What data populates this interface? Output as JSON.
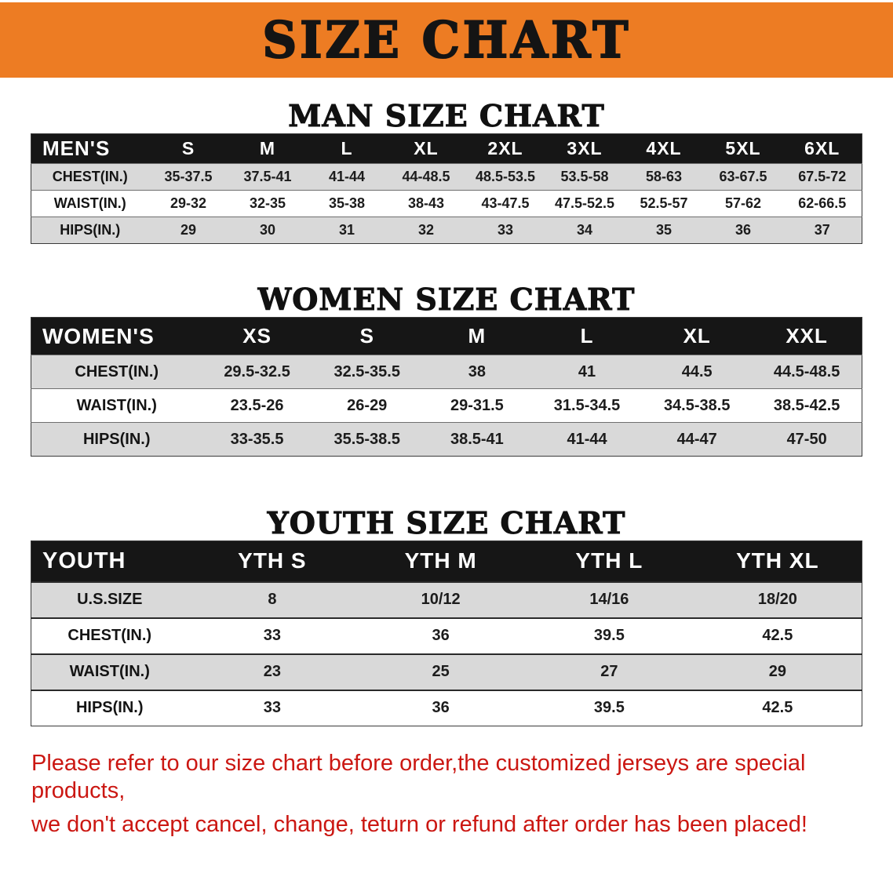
{
  "banner": {
    "title": "SIZE CHART"
  },
  "colors": {
    "banner_bg": "#ED7C23",
    "header_bg": "#161616",
    "row_stripe": "#D9D9D9",
    "note_red": "#CB1712"
  },
  "chart_data": [
    {
      "type": "table",
      "title": "MAN SIZE CHART",
      "columns": [
        "MEN'S",
        "S",
        "M",
        "L",
        "XL",
        "2XL",
        "3XL",
        "4XL",
        "5XL",
        "6XL"
      ],
      "rows": [
        [
          "CHEST(IN.)",
          "35-37.5",
          "37.5-41",
          "41-44",
          "44-48.5",
          "48.5-53.5",
          "53.5-58",
          "58-63",
          "63-67.5",
          "67.5-72"
        ],
        [
          "WAIST(IN.)",
          "29-32",
          "32-35",
          "35-38",
          "38-43",
          "43-47.5",
          "47.5-52.5",
          "52.5-57",
          "57-62",
          "62-66.5"
        ],
        [
          "HIPS(IN.)",
          "29",
          "30",
          "31",
          "32",
          "33",
          "34",
          "35",
          "36",
          "37"
        ]
      ]
    },
    {
      "type": "table",
      "title": "WOMEN SIZE CHART",
      "columns": [
        "WOMEN'S",
        "XS",
        "S",
        "M",
        "L",
        "XL",
        "XXL"
      ],
      "rows": [
        [
          "CHEST(IN.)",
          "29.5-32.5",
          "32.5-35.5",
          "38",
          "41",
          "44.5",
          "44.5-48.5"
        ],
        [
          "WAIST(IN.)",
          "23.5-26",
          "26-29",
          "29-31.5",
          "31.5-34.5",
          "34.5-38.5",
          "38.5-42.5"
        ],
        [
          "HIPS(IN.)",
          "33-35.5",
          "35.5-38.5",
          "38.5-41",
          "41-44",
          "44-47",
          "47-50"
        ]
      ]
    },
    {
      "type": "table",
      "title": "YOUTH SIZE CHART",
      "columns": [
        "YOUTH",
        "YTH S",
        "YTH M",
        "YTH L",
        "YTH XL"
      ],
      "rows": [
        [
          "U.S.SIZE",
          "8",
          "10/12",
          "14/16",
          "18/20"
        ],
        [
          "CHEST(IN.)",
          "33",
          "36",
          "39.5",
          "42.5"
        ],
        [
          "WAIST(IN.)",
          "23",
          "25",
          "27",
          "29"
        ],
        [
          "HIPS(IN.)",
          "33",
          "36",
          "39.5",
          "42.5"
        ]
      ]
    }
  ],
  "note": {
    "line1": "Please refer to our size chart before order,the customized jerseys are special products,",
    "line2": "we don't accept cancel, change, teturn or refund after order has been placed!"
  }
}
